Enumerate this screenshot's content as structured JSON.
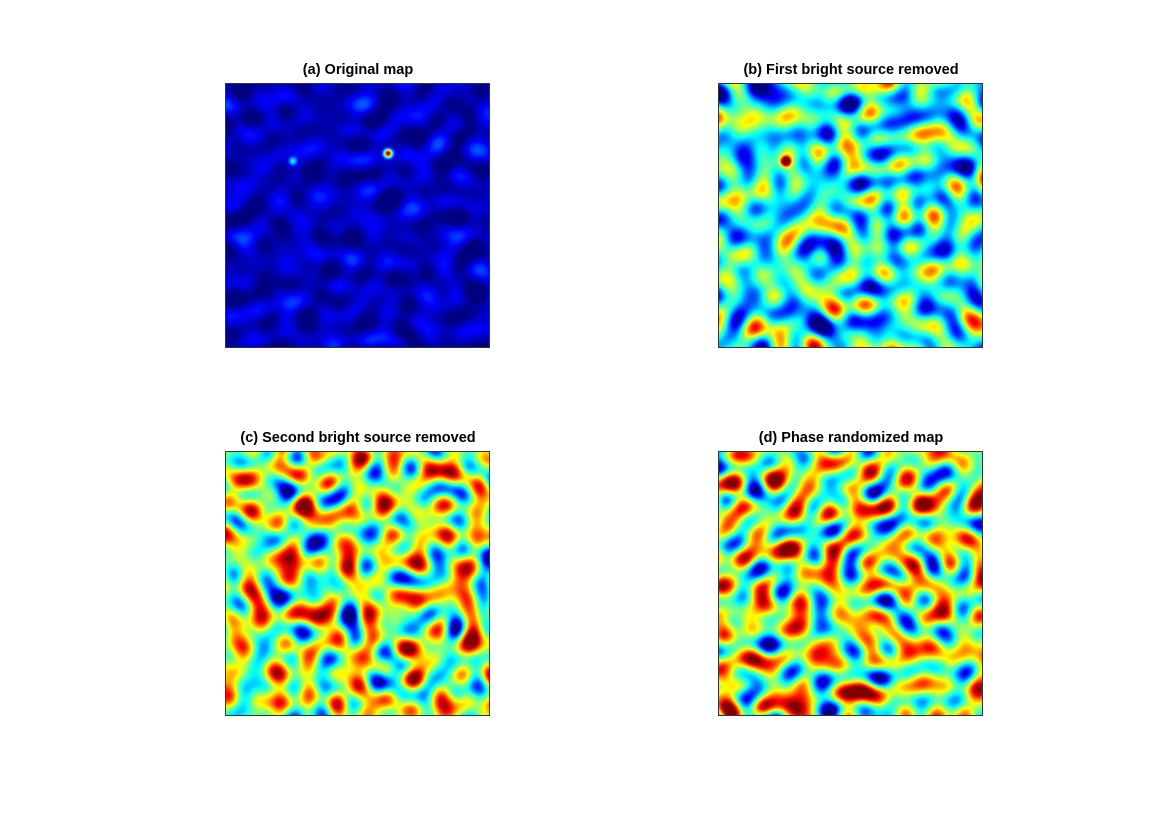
{
  "chart_data": [
    {
      "type": "heatmap",
      "title": "(a) Original map",
      "description_colormap": "jet",
      "dominant_level": "low",
      "bright_sources": [
        {
          "x": 0.61,
          "y": 0.26,
          "intensity": 1.0
        },
        {
          "x": 0.25,
          "y": 0.29,
          "intensity": 0.32
        }
      ],
      "grid": false
    },
    {
      "type": "heatmap",
      "title": "(b) First bright source removed",
      "description_colormap": "jet",
      "dominant_level": "mid-low",
      "bright_sources": [
        {
          "x": 0.25,
          "y": 0.29,
          "intensity": 0.95
        }
      ],
      "grid": false
    },
    {
      "type": "heatmap",
      "title": "(c) Second bright source removed",
      "description_colormap": "jet",
      "dominant_level": "mid",
      "bright_sources": [],
      "grid": false
    },
    {
      "type": "heatmap",
      "title": "(d) Phase randomized map",
      "description_colormap": "jet",
      "dominant_level": "mid",
      "bright_sources": [],
      "grid": false
    }
  ]
}
